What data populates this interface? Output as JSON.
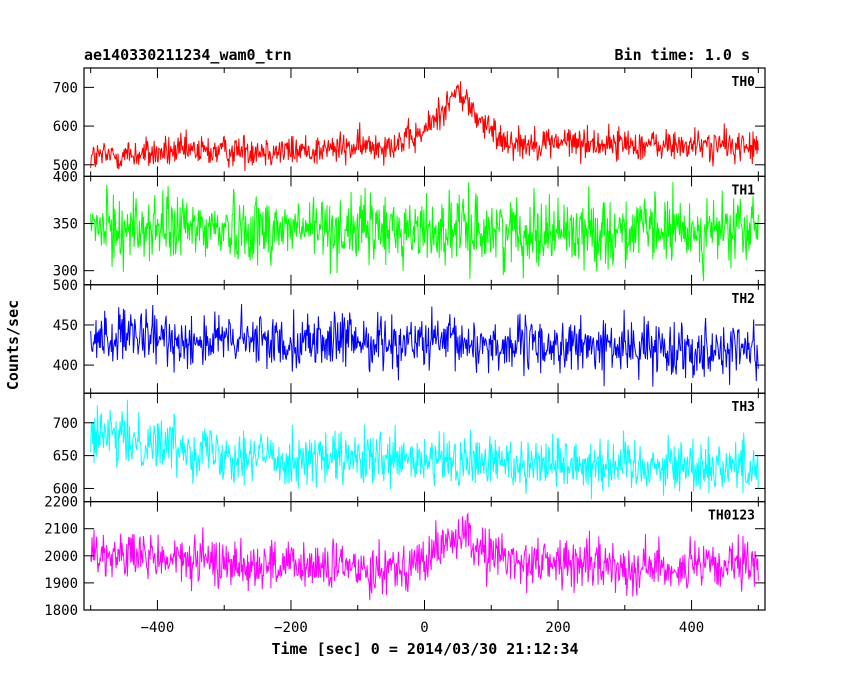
{
  "chart_data": {
    "type": "line",
    "title": "ae140330211234_wam0_trn",
    "bin_time_label": "Bin time: 1.0 s",
    "xlabel": "Time [sec] 0 = 2014/03/30 21:12:34",
    "ylabel": "Counts/sec",
    "xlim": [
      -510,
      510
    ],
    "x_ticks": [
      -400,
      -200,
      0,
      200,
      400
    ],
    "x_tick_labels": [
      "−400",
      "−200",
      "0",
      "200",
      "400"
    ],
    "grid": false,
    "panels": [
      {
        "name": "TH0",
        "color": "#ff0000",
        "ylim": [
          470,
          750
        ],
        "y_ticks": [
          500,
          600,
          700
        ],
        "y_tick_labels": [
          "500",
          "600",
          "700"
        ],
        "x": [
          -500,
          -450,
          -400,
          -350,
          -300,
          -250,
          -200,
          -150,
          -100,
          -50,
          -20,
          0,
          20,
          40,
          50,
          60,
          80,
          100,
          120,
          150,
          200,
          250,
          300,
          350,
          400,
          450,
          500
        ],
        "y": [
          520,
          525,
          530,
          535,
          535,
          540,
          535,
          540,
          545,
          555,
          565,
          585,
          630,
          670,
          690,
          670,
          620,
          585,
          565,
          555,
          560,
          555,
          555,
          550,
          550,
          550,
          545
        ],
        "noise": 30
      },
      {
        "name": "TH1",
        "color": "#00ff00",
        "ylim": [
          285,
          400
        ],
        "y_ticks": [
          300,
          350,
          400
        ],
        "y_tick_labels": [
          "300",
          "350",
          "400"
        ],
        "x": [
          -500,
          -250,
          0,
          250,
          500
        ],
        "y": [
          345,
          345,
          343,
          342,
          342
        ],
        "noise": 26
      },
      {
        "name": "TH2",
        "color": "#0000ff",
        "ylim": [
          365,
          500
        ],
        "y_ticks": [
          400,
          450,
          500
        ],
        "y_tick_labels": [
          "400",
          "450",
          "500"
        ],
        "x": [
          -500,
          -300,
          -100,
          0,
          100,
          300,
          500
        ],
        "y": [
          435,
          430,
          430,
          428,
          425,
          422,
          420
        ],
        "noise": 24
      },
      {
        "name": "TH3",
        "color": "#00ffff",
        "ylim": [
          580,
          745
        ],
        "y_ticks": [
          600,
          650,
          700
        ],
        "y_tick_labels": [
          "600",
          "650",
          "700"
        ],
        "x": [
          -500,
          -400,
          -300,
          -200,
          0,
          200,
          400,
          500
        ],
        "y": [
          680,
          670,
          655,
          645,
          640,
          640,
          635,
          635
        ],
        "noise": 30
      },
      {
        "name": "TH0123",
        "color": "#ff00ff",
        "ylim": [
          1800,
          2200
        ],
        "y_ticks": [
          1800,
          1900,
          2000,
          2100,
          2200
        ],
        "y_tick_labels": [
          "1800",
          "1900",
          "2000",
          "2100",
          "2200"
        ],
        "x": [
          -500,
          -400,
          -300,
          -200,
          -100,
          -50,
          0,
          30,
          50,
          70,
          100,
          150,
          200,
          300,
          400,
          500
        ],
        "y": [
          2010,
          1990,
          1975,
          1960,
          1955,
          1960,
          1980,
          2040,
          2080,
          2050,
          2000,
          1980,
          1975,
          1960,
          1955,
          1960
        ],
        "noise": 65
      }
    ]
  }
}
